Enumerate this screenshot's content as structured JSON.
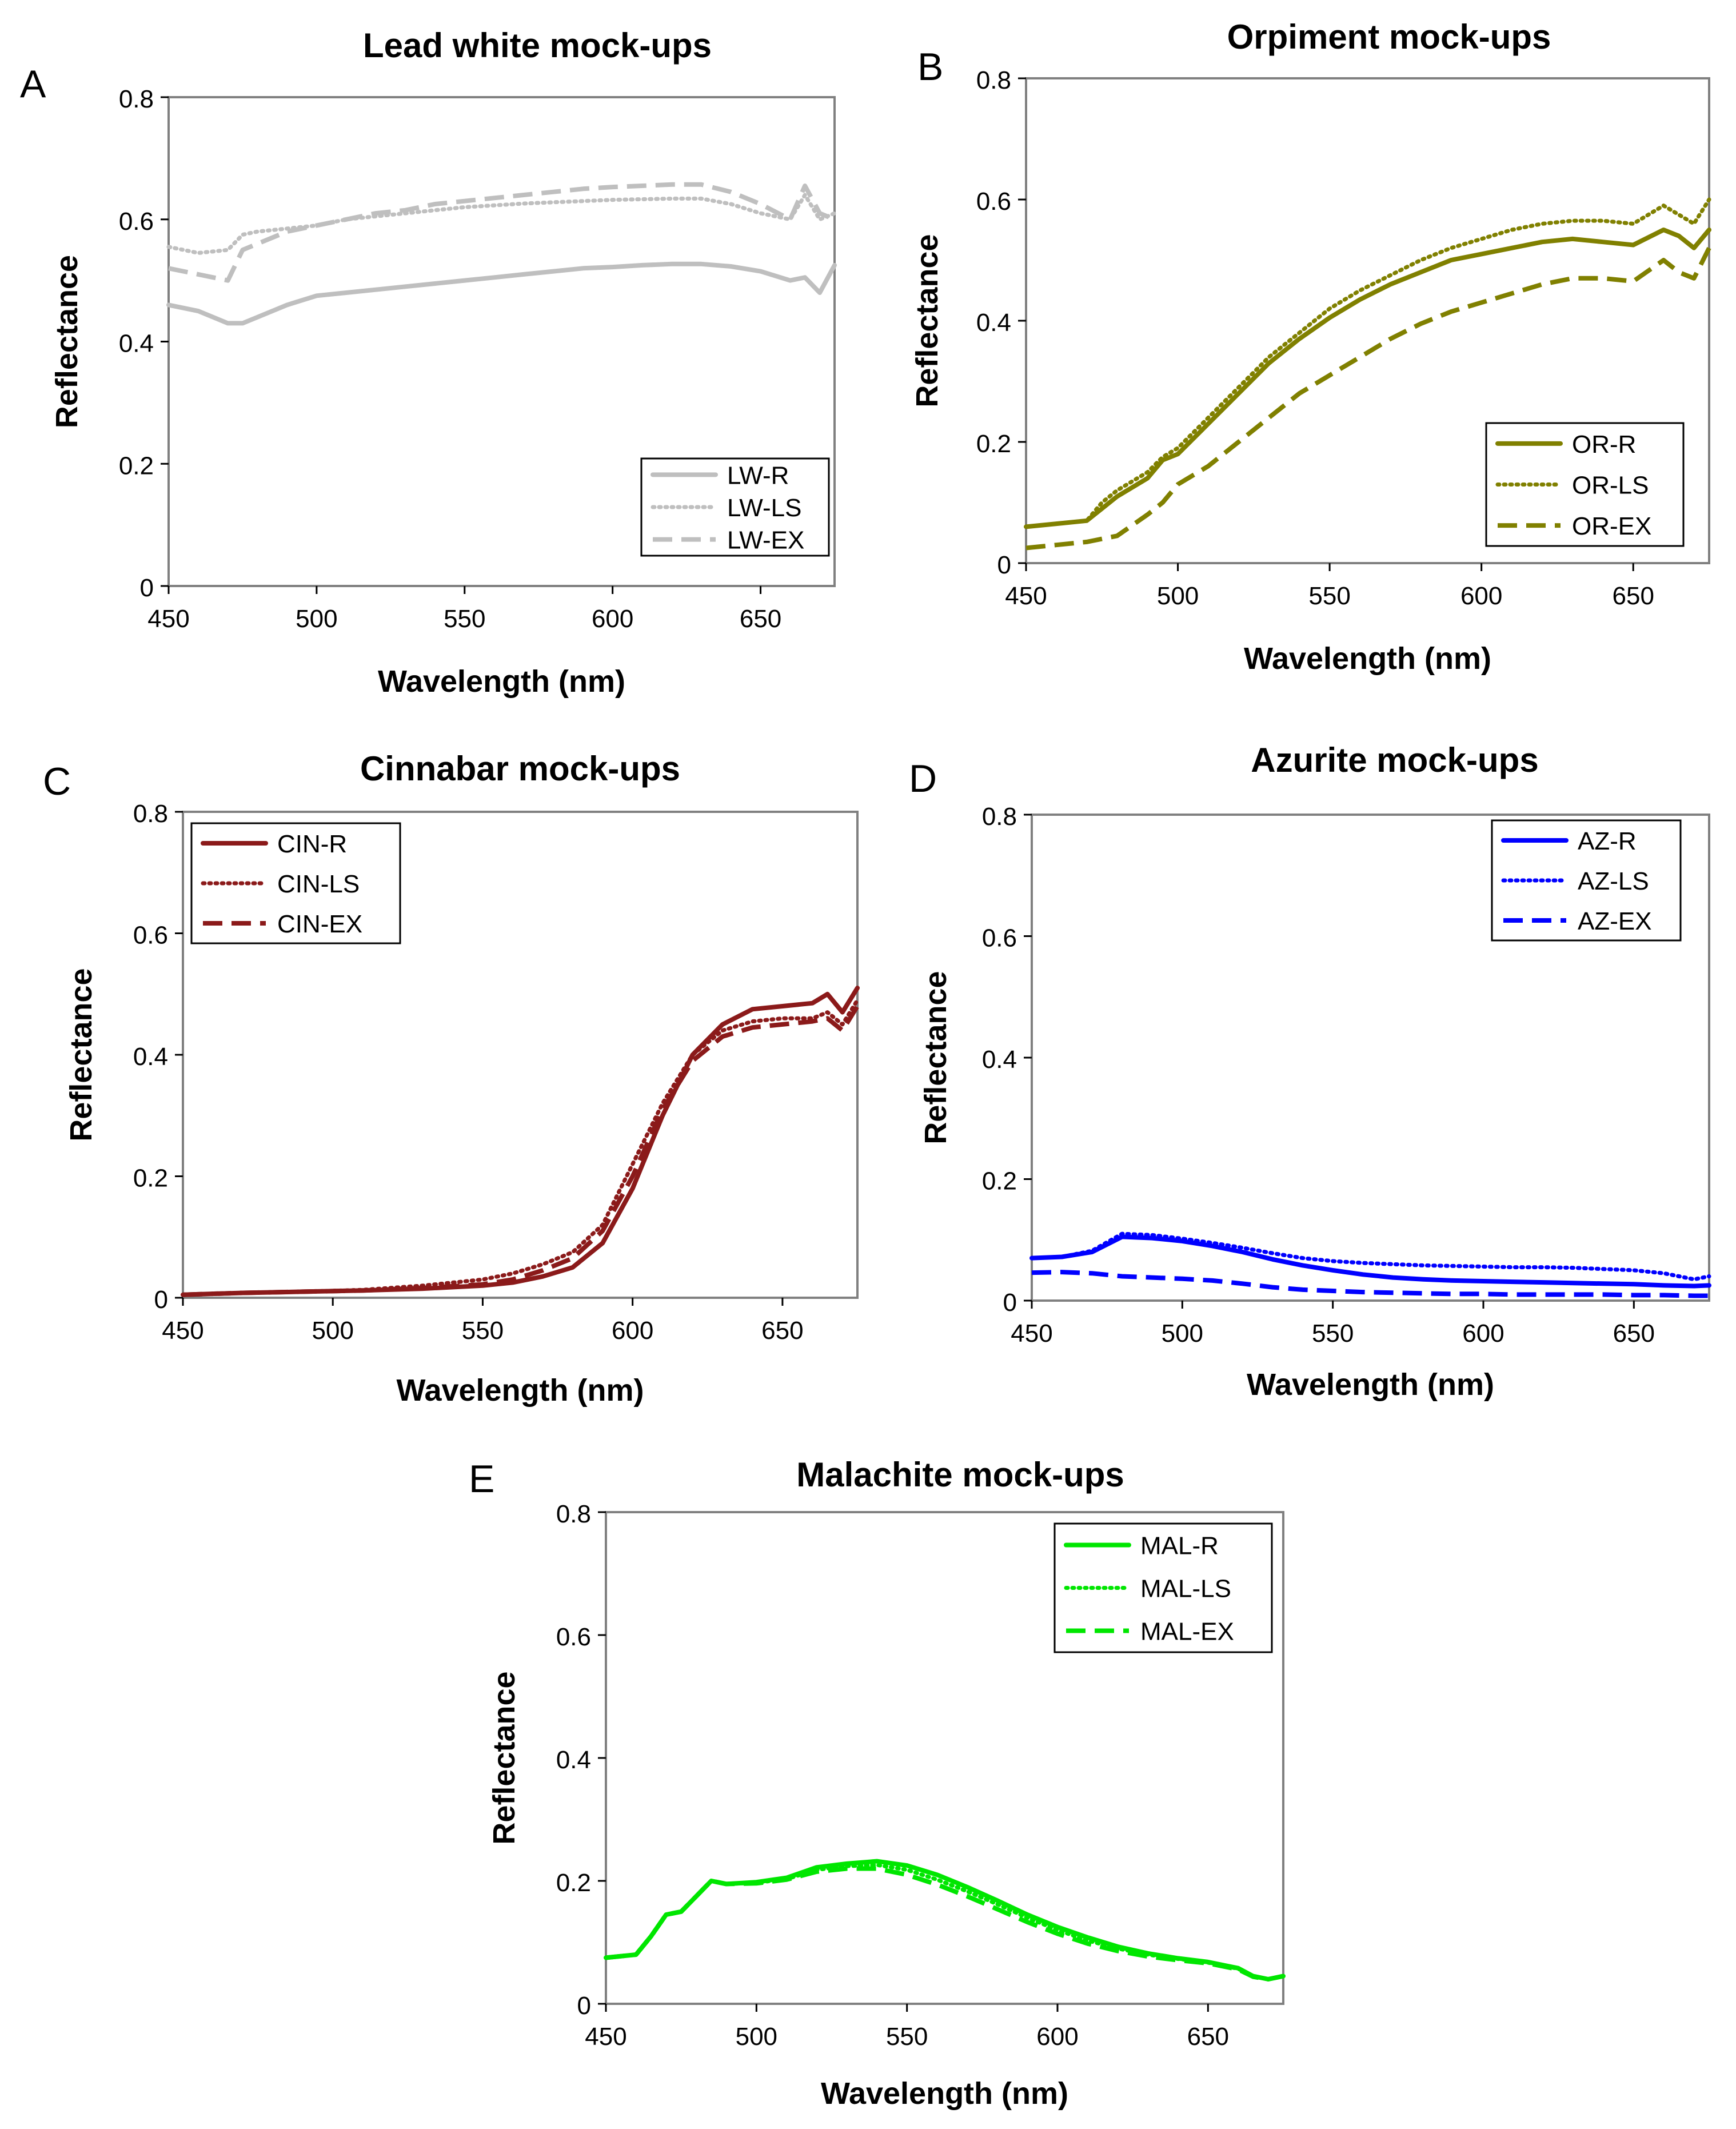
{
  "figure": {
    "panels": [
      "A",
      "B",
      "C",
      "D",
      "E"
    ]
  },
  "chart_data": [
    {
      "id": "A",
      "type": "line",
      "panel_label": "A",
      "title": "Lead white mock-ups",
      "xlabel": "Wavelength (nm)",
      "ylabel": "Reflectance",
      "xlim": [
        450,
        675
      ],
      "ylim": [
        0,
        0.8
      ],
      "xticks": [
        450,
        500,
        550,
        600,
        650
      ],
      "xtick_labels": [
        "450",
        "500",
        "550",
        "600",
        "650"
      ],
      "yticks": [
        0,
        0.2,
        0.4,
        0.6,
        0.8
      ],
      "ytick_labels": [
        "0",
        "0.2",
        "0.4",
        "0.6",
        "0.8"
      ],
      "grid": false,
      "legend_position": "bottom-right",
      "color": "#bfbfbf",
      "x": [
        450,
        460,
        470,
        475,
        480,
        490,
        500,
        510,
        520,
        530,
        540,
        550,
        560,
        570,
        580,
        590,
        600,
        610,
        620,
        630,
        640,
        650,
        660,
        665,
        670,
        675
      ],
      "series": [
        {
          "name": "LW-R",
          "dash": "solid",
          "values": [
            0.46,
            0.45,
            0.43,
            0.43,
            0.44,
            0.46,
            0.475,
            0.48,
            0.485,
            0.49,
            0.495,
            0.5,
            0.505,
            0.51,
            0.515,
            0.52,
            0.522,
            0.525,
            0.527,
            0.527,
            0.523,
            0.515,
            0.5,
            0.505,
            0.48,
            0.525
          ]
        },
        {
          "name": "LW-LS",
          "dash": "dotted",
          "values": [
            0.555,
            0.545,
            0.55,
            0.575,
            0.58,
            0.585,
            0.59,
            0.6,
            0.605,
            0.61,
            0.615,
            0.62,
            0.623,
            0.626,
            0.628,
            0.63,
            0.632,
            0.633,
            0.634,
            0.634,
            0.625,
            0.61,
            0.6,
            0.64,
            0.6,
            0.61
          ]
        },
        {
          "name": "LW-EX",
          "dash": "dashed",
          "values": [
            0.52,
            0.51,
            0.5,
            0.55,
            0.56,
            0.58,
            0.59,
            0.6,
            0.61,
            0.615,
            0.625,
            0.63,
            0.635,
            0.64,
            0.645,
            0.65,
            0.653,
            0.655,
            0.657,
            0.657,
            0.645,
            0.625,
            0.6,
            0.655,
            0.61,
            0.6
          ]
        }
      ]
    },
    {
      "id": "B",
      "type": "line",
      "panel_label": "B",
      "title": "Orpiment mock-ups",
      "xlabel": "Wavelength (nm)",
      "ylabel": "Reflectance",
      "xlim": [
        450,
        675
      ],
      "ylim": [
        0,
        0.8
      ],
      "xticks": [
        450,
        500,
        550,
        600,
        650
      ],
      "xtick_labels": [
        "450",
        "500",
        "550",
        "600",
        "650"
      ],
      "yticks": [
        0,
        0.2,
        0.4,
        0.6,
        0.8
      ],
      "ytick_labels": [
        "0",
        "0.2",
        "0.4",
        "0.6",
        "0.8"
      ],
      "grid": false,
      "legend_position": "bottom-right",
      "color": "#808000",
      "x": [
        450,
        460,
        470,
        475,
        480,
        490,
        495,
        500,
        510,
        520,
        530,
        540,
        550,
        560,
        570,
        580,
        590,
        600,
        610,
        620,
        630,
        640,
        650,
        660,
        665,
        670,
        675
      ],
      "series": [
        {
          "name": "OR-R",
          "dash": "solid",
          "values": [
            0.06,
            0.065,
            0.07,
            0.09,
            0.11,
            0.14,
            0.17,
            0.18,
            0.23,
            0.28,
            0.33,
            0.37,
            0.405,
            0.435,
            0.46,
            0.48,
            0.5,
            0.51,
            0.52,
            0.53,
            0.535,
            0.53,
            0.525,
            0.55,
            0.54,
            0.52,
            0.55
          ]
        },
        {
          "name": "OR-LS",
          "dash": "dotted",
          "values": [
            0.06,
            0.065,
            0.07,
            0.1,
            0.12,
            0.15,
            0.175,
            0.19,
            0.24,
            0.29,
            0.34,
            0.38,
            0.42,
            0.45,
            0.475,
            0.5,
            0.52,
            0.535,
            0.55,
            0.56,
            0.565,
            0.565,
            0.56,
            0.59,
            0.575,
            0.56,
            0.6
          ]
        },
        {
          "name": "OR-EX",
          "dash": "dashed",
          "values": [
            0.025,
            0.03,
            0.035,
            0.04,
            0.045,
            0.08,
            0.1,
            0.13,
            0.16,
            0.2,
            0.24,
            0.28,
            0.31,
            0.34,
            0.37,
            0.395,
            0.415,
            0.43,
            0.445,
            0.46,
            0.47,
            0.47,
            0.465,
            0.5,
            0.48,
            0.47,
            0.52
          ]
        }
      ]
    },
    {
      "id": "C",
      "type": "line",
      "panel_label": "C",
      "title": "Cinnabar mock-ups",
      "xlabel": "Wavelength (nm)",
      "ylabel": "Reflectance",
      "xlim": [
        450,
        675
      ],
      "ylim": [
        0,
        0.8
      ],
      "xticks": [
        450,
        500,
        550,
        600,
        650
      ],
      "xtick_labels": [
        "450",
        "500",
        "550",
        "600",
        "650"
      ],
      "yticks": [
        0,
        0.2,
        0.4,
        0.6,
        0.8
      ],
      "ytick_labels": [
        "0",
        "0.2",
        "0.4",
        "0.6",
        "0.8"
      ],
      "grid": false,
      "legend_position": "top-left",
      "color": "#8b1a1a",
      "x": [
        450,
        470,
        490,
        510,
        530,
        550,
        560,
        570,
        580,
        590,
        600,
        610,
        620,
        630,
        640,
        650,
        660,
        665,
        670,
        675
      ],
      "series": [
        {
          "name": "CIN-R",
          "dash": "solid",
          "values": [
            0.005,
            0.008,
            0.01,
            0.012,
            0.015,
            0.02,
            0.025,
            0.035,
            0.05,
            0.09,
            0.18,
            0.3,
            0.4,
            0.45,
            0.475,
            0.48,
            0.485,
            0.5,
            0.47,
            0.51
          ]
        },
        {
          "name": "CIN-LS",
          "dash": "dotted",
          "values": [
            0.005,
            0.008,
            0.01,
            0.013,
            0.02,
            0.03,
            0.04,
            0.055,
            0.075,
            0.12,
            0.22,
            0.32,
            0.4,
            0.44,
            0.455,
            0.46,
            0.46,
            0.47,
            0.45,
            0.49
          ]
        },
        {
          "name": "CIN-EX",
          "dash": "dashed",
          "values": [
            0.005,
            0.008,
            0.01,
            0.012,
            0.016,
            0.022,
            0.03,
            0.045,
            0.065,
            0.11,
            0.2,
            0.31,
            0.39,
            0.43,
            0.445,
            0.45,
            0.455,
            0.46,
            0.44,
            0.48
          ]
        }
      ]
    },
    {
      "id": "D",
      "type": "line",
      "panel_label": "D",
      "title": "Azurite mock-ups",
      "xlabel": "Wavelength (nm)",
      "ylabel": "Reflectance",
      "xlim": [
        450,
        675
      ],
      "ylim": [
        0,
        0.8
      ],
      "xticks": [
        450,
        500,
        550,
        600,
        650
      ],
      "xtick_labels": [
        "450",
        "500",
        "550",
        "600",
        "650"
      ],
      "yticks": [
        0,
        0.2,
        0.4,
        0.6,
        0.8
      ],
      "ytick_labels": [
        "0",
        "0.2",
        "0.4",
        "0.6",
        "0.8"
      ],
      "grid": false,
      "legend_position": "top-right",
      "color": "#0000ff",
      "x": [
        450,
        460,
        470,
        480,
        490,
        500,
        510,
        520,
        530,
        540,
        550,
        560,
        570,
        580,
        590,
        600,
        610,
        620,
        630,
        640,
        650,
        660,
        670,
        675
      ],
      "series": [
        {
          "name": "AZ-R",
          "dash": "solid",
          "values": [
            0.07,
            0.072,
            0.08,
            0.105,
            0.103,
            0.098,
            0.09,
            0.08,
            0.068,
            0.058,
            0.05,
            0.043,
            0.038,
            0.035,
            0.033,
            0.032,
            0.031,
            0.03,
            0.029,
            0.028,
            0.027,
            0.025,
            0.024,
            0.025
          ]
        },
        {
          "name": "AZ-LS",
          "dash": "dotted",
          "values": [
            0.07,
            0.072,
            0.082,
            0.11,
            0.108,
            0.102,
            0.095,
            0.087,
            0.078,
            0.07,
            0.065,
            0.062,
            0.06,
            0.058,
            0.057,
            0.056,
            0.055,
            0.055,
            0.054,
            0.052,
            0.05,
            0.045,
            0.035,
            0.04
          ]
        },
        {
          "name": "AZ-EX",
          "dash": "dashed",
          "values": [
            0.046,
            0.047,
            0.045,
            0.04,
            0.038,
            0.036,
            0.033,
            0.028,
            0.022,
            0.018,
            0.016,
            0.014,
            0.013,
            0.012,
            0.011,
            0.011,
            0.01,
            0.01,
            0.01,
            0.01,
            0.009,
            0.009,
            0.008,
            0.008
          ]
        }
      ]
    },
    {
      "id": "E",
      "type": "line",
      "panel_label": "E",
      "title": "Malachite mock-ups",
      "xlabel": "Wavelength (nm)",
      "ylabel": "Reflectance",
      "xlim": [
        450,
        675
      ],
      "ylim": [
        0,
        0.8
      ],
      "xticks": [
        450,
        500,
        550,
        600,
        650
      ],
      "xtick_labels": [
        "450",
        "500",
        "550",
        "600",
        "650"
      ],
      "yticks": [
        0,
        0.2,
        0.4,
        0.6,
        0.8
      ],
      "ytick_labels": [
        "0",
        "0.2",
        "0.4",
        "0.6",
        "0.8"
      ],
      "grid": false,
      "legend_position": "top-right",
      "color": "#00e600",
      "x": [
        450,
        460,
        465,
        470,
        475,
        480,
        485,
        490,
        500,
        510,
        520,
        530,
        540,
        550,
        560,
        570,
        580,
        590,
        600,
        610,
        620,
        630,
        640,
        650,
        660,
        665,
        670,
        675
      ],
      "series": [
        {
          "name": "MAL-R",
          "dash": "solid",
          "values": [
            0.075,
            0.08,
            0.11,
            0.145,
            0.15,
            0.175,
            0.2,
            0.195,
            0.198,
            0.205,
            0.222,
            0.228,
            0.232,
            0.225,
            0.21,
            0.19,
            0.168,
            0.145,
            0.125,
            0.108,
            0.093,
            0.082,
            0.074,
            0.068,
            0.058,
            0.045,
            0.04,
            0.045
          ]
        },
        {
          "name": "MAL-LS",
          "dash": "dotted",
          "values": [
            0.075,
            0.08,
            0.11,
            0.145,
            0.15,
            0.175,
            0.2,
            0.195,
            0.197,
            0.203,
            0.218,
            0.224,
            0.226,
            0.218,
            0.202,
            0.183,
            0.162,
            0.14,
            0.12,
            0.103,
            0.09,
            0.08,
            0.073,
            0.067,
            0.057,
            0.045,
            0.04,
            0.045
          ]
        },
        {
          "name": "MAL-EX",
          "dash": "dashed",
          "values": [
            0.075,
            0.08,
            0.11,
            0.145,
            0.15,
            0.175,
            0.2,
            0.195,
            0.196,
            0.202,
            0.215,
            0.22,
            0.22,
            0.21,
            0.194,
            0.175,
            0.154,
            0.133,
            0.114,
            0.098,
            0.086,
            0.077,
            0.071,
            0.066,
            0.056,
            0.044,
            0.04,
            0.045
          ]
        }
      ]
    }
  ]
}
